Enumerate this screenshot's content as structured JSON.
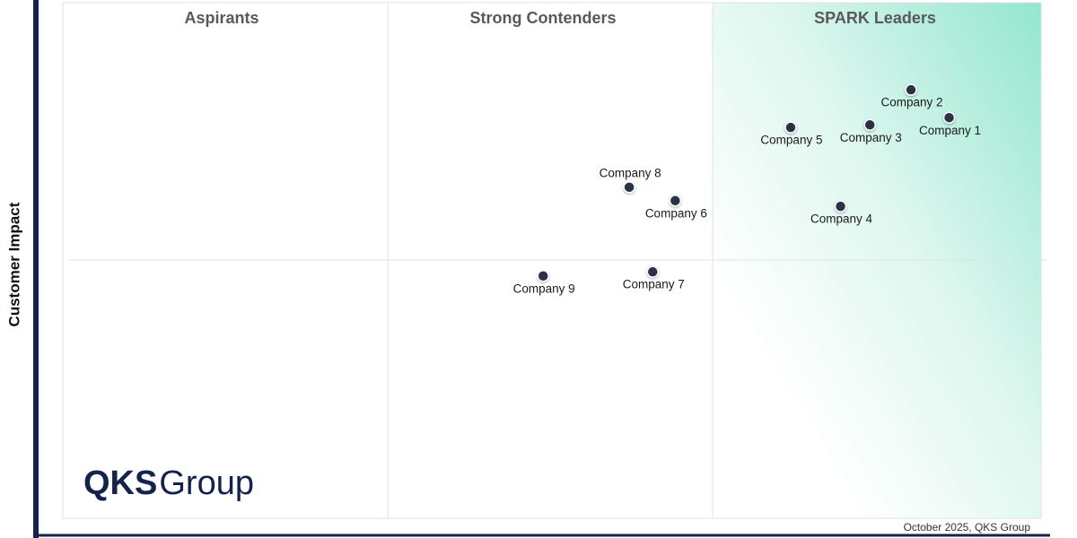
{
  "chart_data": {
    "type": "scatter",
    "y_label": "Customer Impact",
    "quadrant_labels": [
      "Aspirants",
      "Strong Contenders",
      "SPARK Leaders"
    ],
    "labels": [
      "Company 1",
      "Company 2",
      "Company 3",
      "Company 4",
      "Company 5",
      "Company 6",
      "Company 7",
      "Company 8",
      "Company 9"
    ],
    "x": [
      90.6,
      86.7,
      82.5,
      79.5,
      74.4,
      62.6,
      60.3,
      57.9,
      49.1
    ],
    "values": [
      77.7,
      83.1,
      76.3,
      60.5,
      75.8,
      61.6,
      47.8,
      64.2,
      47.0
    ],
    "xlim": [
      0,
      100
    ],
    "ylim": [
      0,
      100
    ],
    "color": "#2b3245",
    "logo": {
      "bold": "QKS",
      "regular": "Group"
    },
    "footnote": "October 2025, QKS Group"
  }
}
